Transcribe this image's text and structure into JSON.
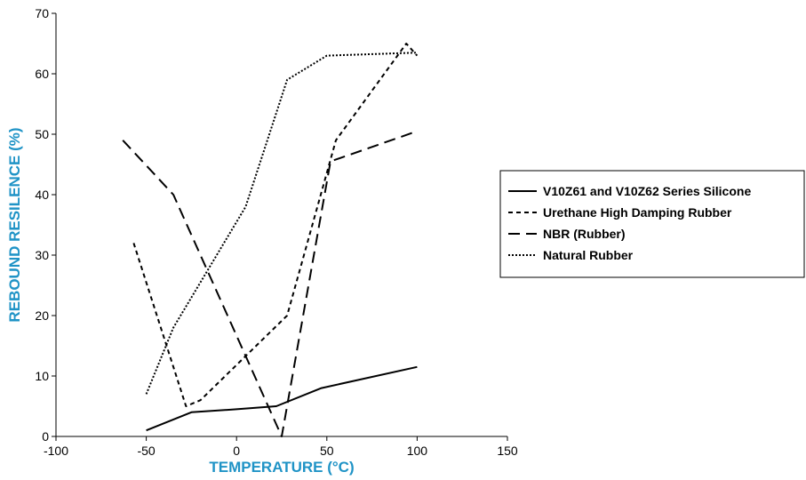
{
  "colors": {
    "axis_title": "#1f93c6",
    "series": "#000000"
  },
  "chart_data": {
    "type": "line",
    "xlabel": "TEMPERATURE (°C)",
    "ylabel": "REBOUND RESILENCE (%)",
    "xlim": [
      -100,
      150
    ],
    "ylim": [
      0,
      70
    ],
    "x_ticks": [
      -100,
      -50,
      0,
      50,
      100,
      150
    ],
    "y_ticks": [
      0,
      10,
      20,
      30,
      40,
      50,
      60,
      70
    ],
    "grid": false,
    "legend_position": "right",
    "series": [
      {
        "name": "V10Z61 and V10Z62 Series Silicone",
        "style": "solid",
        "x": [
          -50,
          -25,
          0,
          22,
          47,
          100
        ],
        "y": [
          1,
          4,
          4.5,
          5,
          8,
          11.5
        ]
      },
      {
        "name": "Urethane High Damping Rubber",
        "style": "short-dash",
        "x": [
          -57,
          -28,
          -20,
          28,
          55,
          94,
          100
        ],
        "y": [
          32,
          5,
          6,
          20,
          49,
          65,
          63
        ]
      },
      {
        "name": "NBR (Rubber)",
        "style": "long-dash",
        "x": [
          -63,
          -35,
          25,
          52,
          100
        ],
        "y": [
          49,
          40,
          0,
          45.5,
          50.5
        ]
      },
      {
        "name": "Natural Rubber",
        "style": "dotted",
        "x": [
          -50,
          -35,
          5,
          28,
          50,
          100
        ],
        "y": [
          7,
          18,
          38,
          59,
          63,
          63.5
        ]
      }
    ]
  }
}
